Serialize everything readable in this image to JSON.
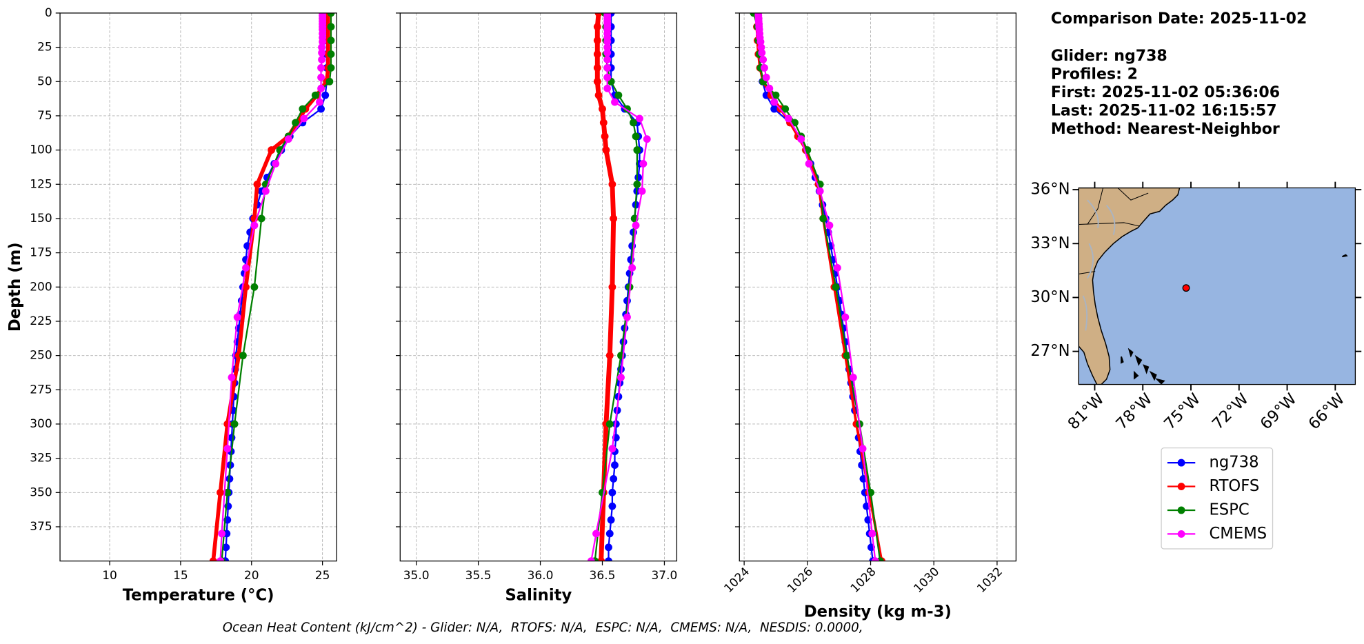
{
  "info": [
    "Comparison Date: 2025-11-02",
    "Glider: ng738",
    "Profiles: 2",
    "First: 2025-11-02 05:36:06",
    "Last: 2025-11-02 16:15:57",
    "Method: Nearest-Neighbor"
  ],
  "footer": "Ocean Heat Content (kJ/cm^2) - Glider: N/A,  RTOFS: N/A,  ESPC: N/A,  CMEMS: N/A,  NESDIS: 0.0000,",
  "chart_data": [
    {
      "type": "line",
      "xlabel": "Temperature (°C)",
      "ylabel": "Depth (m)",
      "grid": true,
      "xlim": [
        6.5,
        26
      ],
      "xticks": [
        10,
        15,
        20,
        25
      ],
      "ylim": [
        400,
        0
      ],
      "yticks": [
        0,
        25,
        50,
        75,
        100,
        125,
        150,
        175,
        200,
        225,
        250,
        275,
        300,
        325,
        350,
        375
      ],
      "series": [
        {
          "name": "ng738",
          "color": "#0000ff",
          "y": [
            0,
            10,
            20,
            30,
            40,
            50,
            60,
            70,
            80,
            90,
            100,
            110,
            120,
            130,
            140,
            150,
            160,
            170,
            180,
            190,
            200,
            210,
            220,
            230,
            240,
            250,
            260,
            270,
            280,
            290,
            300,
            310,
            320,
            330,
            340,
            350,
            360,
            370,
            380,
            390,
            400
          ],
          "values": [
            25.3,
            25.3,
            25.3,
            25.3,
            25.3,
            25.3,
            25.2,
            24.9,
            23.6,
            22.7,
            22.1,
            21.6,
            21.1,
            20.7,
            20.4,
            20.1,
            19.9,
            19.7,
            19.6,
            19.5,
            19.4,
            19.3,
            19.2,
            19.1,
            19.0,
            18.9,
            18.85,
            18.8,
            18.75,
            18.7,
            18.65,
            18.6,
            18.55,
            18.5,
            18.45,
            18.4,
            18.35,
            18.3,
            18.25,
            18.2,
            18.15
          ]
        },
        {
          "name": "RTOFS",
          "color": "#ff0000",
          "linewidth": 4.5,
          "y": [
            0,
            10,
            20,
            30,
            40,
            50,
            60,
            70,
            80,
            90,
            100,
            125,
            150,
            200,
            250,
            300,
            350,
            400
          ],
          "values": [
            25.4,
            25.4,
            25.4,
            25.4,
            25.4,
            25.3,
            24.6,
            23.8,
            23.2,
            22.6,
            21.4,
            20.4,
            20.2,
            19.6,
            19.1,
            18.3,
            17.8,
            17.3
          ]
        },
        {
          "name": "ESPC",
          "color": "#008000",
          "y": [
            0,
            10,
            20,
            30,
            40,
            50,
            60,
            70,
            80,
            90,
            100,
            125,
            150,
            200,
            250,
            300,
            350,
            400
          ],
          "values": [
            25.6,
            25.6,
            25.6,
            25.6,
            25.6,
            25.5,
            24.5,
            23.6,
            23.1,
            22.6,
            22.0,
            21.0,
            20.7,
            20.2,
            19.4,
            18.8,
            18.3,
            17.9
          ]
        },
        {
          "name": "CMEMS",
          "color": "#ff00ff",
          "y": [
            0,
            2,
            4,
            6,
            8,
            10,
            12,
            15,
            18,
            21,
            25,
            29,
            34,
            40,
            47,
            55,
            65,
            77,
            92,
            110,
            130,
            155,
            186,
            222,
            266,
            318,
            380,
            400
          ],
          "values": [
            25.0,
            25.0,
            25.0,
            25.0,
            25.0,
            25.0,
            25.0,
            25.0,
            25.0,
            25.0,
            24.95,
            24.95,
            24.95,
            24.9,
            24.9,
            24.9,
            24.8,
            23.7,
            22.6,
            21.7,
            21.0,
            20.2,
            19.6,
            19.0,
            18.6,
            18.3,
            17.9,
            17.8
          ]
        }
      ]
    },
    {
      "type": "line",
      "xlabel": "Salinity",
      "grid": true,
      "sharey": true,
      "xlim": [
        34.87,
        37.1
      ],
      "xticks": [
        {
          "value": 35,
          "label": "35.0"
        },
        35.5,
        {
          "value": 36,
          "label": "36.0"
        },
        36.5,
        {
          "value": 37,
          "label": "37.0"
        }
      ],
      "ylim": [
        400,
        0
      ],
      "yticks": [
        0,
        25,
        50,
        75,
        100,
        125,
        150,
        175,
        200,
        225,
        250,
        275,
        300,
        325,
        350,
        375
      ],
      "series": [
        {
          "color": "#0000ff",
          "y": [
            0,
            10,
            20,
            30,
            40,
            50,
            60,
            70,
            80,
            90,
            100,
            110,
            120,
            130,
            140,
            150,
            160,
            170,
            180,
            190,
            200,
            210,
            220,
            230,
            240,
            250,
            260,
            270,
            280,
            290,
            300,
            310,
            320,
            330,
            340,
            350,
            360,
            370,
            380,
            390,
            400
          ],
          "values": [
            36.57,
            36.57,
            36.57,
            36.57,
            36.57,
            36.57,
            36.6,
            36.68,
            36.78,
            36.79,
            36.8,
            36.8,
            36.79,
            36.78,
            36.77,
            36.76,
            36.75,
            36.74,
            36.73,
            36.72,
            36.71,
            36.7,
            36.69,
            36.68,
            36.67,
            36.66,
            36.65,
            36.64,
            36.63,
            36.62,
            36.61,
            36.61,
            36.6,
            36.6,
            36.59,
            36.58,
            36.58,
            36.57,
            36.56,
            36.55,
            36.55
          ]
        },
        {
          "color": "#ff0000",
          "linewidth": 5.5,
          "y": [
            0,
            10,
            20,
            30,
            40,
            50,
            60,
            70,
            80,
            90,
            100,
            125,
            150,
            200,
            250,
            300,
            350,
            400
          ],
          "values": [
            36.47,
            36.46,
            36.46,
            36.46,
            36.46,
            36.46,
            36.47,
            36.5,
            36.51,
            36.52,
            36.53,
            36.58,
            36.59,
            36.58,
            36.56,
            36.53,
            36.51,
            36.49
          ]
        },
        {
          "color": "#008000",
          "y": [
            0,
            10,
            20,
            30,
            40,
            50,
            60,
            70,
            80,
            90,
            100,
            125,
            150,
            200,
            250,
            300,
            350,
            400
          ],
          "values": [
            36.52,
            36.53,
            36.53,
            36.53,
            36.54,
            36.57,
            36.63,
            36.7,
            36.75,
            36.77,
            36.78,
            36.78,
            36.76,
            36.72,
            36.65,
            36.56,
            36.5,
            36.44
          ]
        },
        {
          "color": "#ff00ff",
          "y": [
            0,
            2,
            4,
            6,
            8,
            10,
            12,
            15,
            18,
            21,
            25,
            29,
            34,
            40,
            47,
            55,
            65,
            77,
            92,
            110,
            130,
            155,
            186,
            222,
            266,
            318,
            380,
            400
          ],
          "values": [
            36.54,
            36.54,
            36.54,
            36.54,
            36.54,
            36.54,
            36.54,
            36.54,
            36.54,
            36.54,
            36.54,
            36.54,
            36.54,
            36.54,
            36.54,
            36.54,
            36.6,
            36.8,
            36.86,
            36.83,
            36.82,
            36.77,
            36.74,
            36.7,
            36.65,
            36.58,
            36.45,
            36.41
          ]
        }
      ]
    },
    {
      "type": "line",
      "xlabel": "Density (kg m-3)",
      "grid": true,
      "sharey": true,
      "xtick_rotation": 45,
      "xlim": [
        1023.85,
        1032.6
      ],
      "xticks": [
        1024,
        1026,
        1028,
        1030,
        1032
      ],
      "ylim": [
        400,
        0
      ],
      "yticks": [
        0,
        25,
        50,
        75,
        100,
        125,
        150,
        175,
        200,
        225,
        250,
        275,
        300,
        325,
        350,
        375
      ],
      "series": [
        {
          "color": "#0000ff",
          "y": [
            0,
            10,
            20,
            30,
            40,
            50,
            60,
            70,
            80,
            90,
            100,
            110,
            120,
            130,
            140,
            150,
            160,
            170,
            180,
            190,
            200,
            210,
            220,
            230,
            240,
            250,
            260,
            270,
            280,
            290,
            300,
            310,
            320,
            330,
            340,
            350,
            360,
            370,
            380,
            390,
            400
          ],
          "values": [
            1024.4,
            1024.42,
            1024.45,
            1024.48,
            1024.52,
            1024.58,
            1024.7,
            1024.95,
            1025.45,
            1025.75,
            1025.95,
            1026.1,
            1026.25,
            1026.38,
            1026.48,
            1026.58,
            1026.66,
            1026.74,
            1026.81,
            1026.88,
            1026.95,
            1027.02,
            1027.08,
            1027.14,
            1027.2,
            1027.26,
            1027.32,
            1027.38,
            1027.44,
            1027.5,
            1027.56,
            1027.62,
            1027.67,
            1027.72,
            1027.77,
            1027.82,
            1027.87,
            1027.92,
            1027.97,
            1028.02,
            1028.07
          ]
        },
        {
          "color": "#ff0000",
          "linewidth": 3,
          "y": [
            0,
            10,
            20,
            30,
            40,
            50,
            60,
            70,
            80,
            90,
            100,
            125,
            150,
            200,
            250,
            300,
            350,
            400
          ],
          "values": [
            1024.38,
            1024.4,
            1024.42,
            1024.45,
            1024.5,
            1024.6,
            1024.85,
            1025.15,
            1025.45,
            1025.7,
            1025.95,
            1026.35,
            1026.5,
            1026.85,
            1027.2,
            1027.55,
            1027.95,
            1028.35
          ]
        },
        {
          "color": "#008000",
          "y": [
            0,
            10,
            20,
            30,
            40,
            50,
            60,
            70,
            80,
            90,
            100,
            125,
            150,
            200,
            250,
            300,
            350,
            400
          ],
          "values": [
            1024.3,
            1024.42,
            1024.45,
            1024.48,
            1024.52,
            1024.6,
            1025.0,
            1025.3,
            1025.6,
            1025.8,
            1026.0,
            1026.4,
            1026.5,
            1026.9,
            1027.25,
            1027.65,
            1028.0,
            1028.3
          ]
        },
        {
          "color": "#ff00ff",
          "y": [
            0,
            2,
            4,
            6,
            8,
            10,
            12,
            15,
            18,
            21,
            25,
            29,
            34,
            40,
            47,
            55,
            65,
            77,
            92,
            110,
            130,
            155,
            186,
            222,
            266,
            318,
            380,
            400
          ],
          "values": [
            1024.45,
            1024.45,
            1024.46,
            1024.46,
            1024.47,
            1024.47,
            1024.48,
            1024.49,
            1024.5,
            1024.52,
            1024.54,
            1024.56,
            1024.6,
            1024.64,
            1024.7,
            1024.8,
            1024.95,
            1025.4,
            1025.8,
            1026.05,
            1026.4,
            1026.7,
            1026.95,
            1027.2,
            1027.45,
            1027.75,
            1028.05,
            1028.15
          ]
        }
      ]
    },
    {
      "type": "map",
      "xlim": [
        -82,
        -64.75
      ],
      "xticks": [
        {
          "value": -81,
          "label": "81°W"
        },
        {
          "value": -78,
          "label": "78°W"
        },
        {
          "value": -75,
          "label": "75°W"
        },
        {
          "value": -72,
          "label": "72°W"
        },
        {
          "value": -69,
          "label": "69°W"
        },
        {
          "value": -66,
          "label": "66°W"
        }
      ],
      "ylim": [
        25.16,
        36.1
      ],
      "yticks": [
        {
          "value": 27,
          "label": "27°N"
        },
        {
          "value": 30,
          "label": "30°N"
        },
        {
          "value": 33,
          "label": "33°N"
        },
        {
          "value": 36,
          "label": "36°N"
        }
      ],
      "series": [
        {
          "color": "#ff0000",
          "x": [
            -75.3
          ],
          "values": [
            30.53
          ]
        }
      ]
    }
  ]
}
